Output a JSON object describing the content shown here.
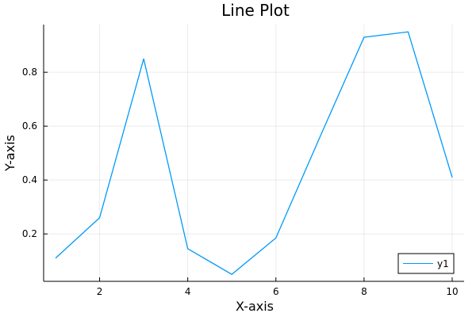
{
  "chart_data": {
    "type": "line",
    "title": "Line Plot",
    "xlabel": "X-axis",
    "ylabel": "Y-axis",
    "xlim": [
      0.73,
      10.27
    ],
    "ylim": [
      0.024,
      0.977
    ],
    "xticks": [
      2,
      4,
      6,
      8,
      10
    ],
    "xtick_labels": [
      "2",
      "4",
      "6",
      "8",
      "10"
    ],
    "yticks": [
      0.2,
      0.4,
      0.6,
      0.8
    ],
    "ytick_labels": [
      "0.2",
      "0.4",
      "0.6",
      "0.8"
    ],
    "grid": true,
    "legend": {
      "placement": "bottom-right"
    },
    "series": [
      {
        "name": "y1",
        "color": "#009AFA",
        "x": [
          1,
          2,
          3,
          4,
          5,
          6,
          7,
          8,
          9,
          10
        ],
        "y": [
          0.11,
          0.26,
          0.85,
          0.145,
          0.05,
          0.185,
          0.56,
          0.93,
          0.95,
          0.41
        ]
      }
    ]
  }
}
